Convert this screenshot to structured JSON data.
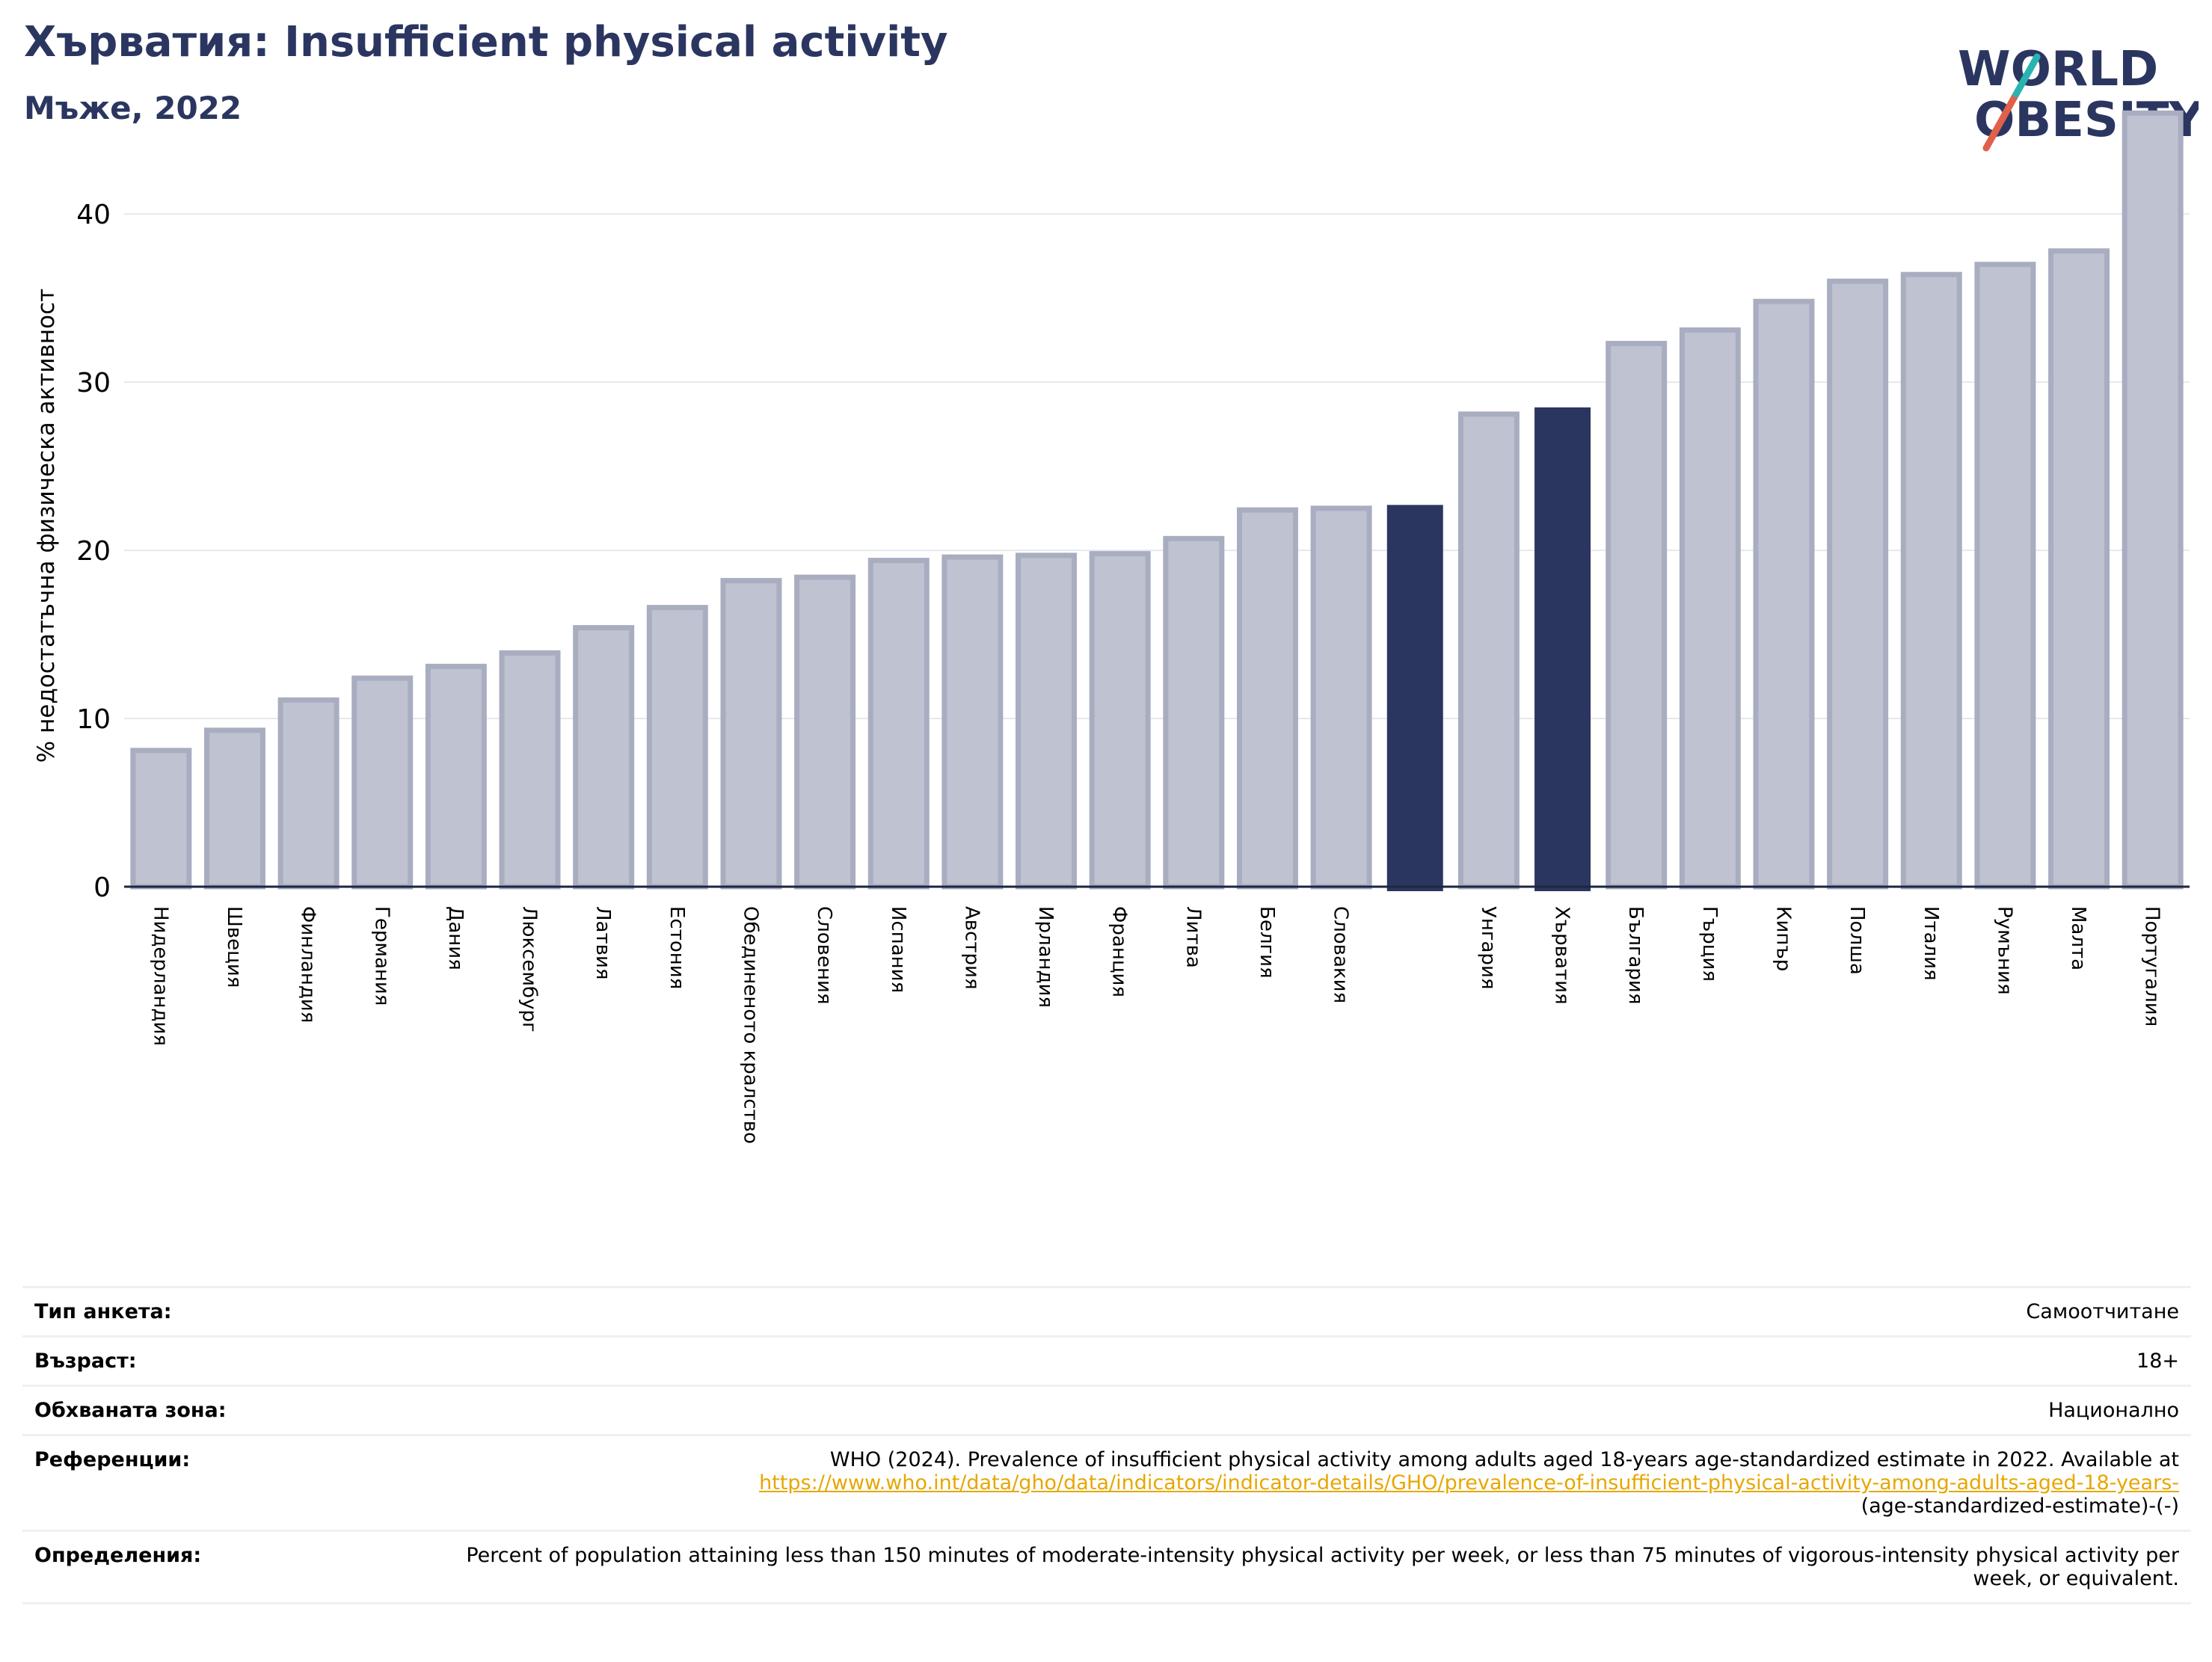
{
  "title": "Хърватия: Insufficient physical activity",
  "subtitle": "Мъже, 2022",
  "logo": {
    "line1": "WORLD",
    "line2": "OBESITY",
    "colors": {
      "text": "#2b3660",
      "slash_red": "#e0604a",
      "slash_teal": "#2ab3b1"
    }
  },
  "colors": {
    "bar": "#bfc2d0",
    "bar_edge": "#a9adc0",
    "highlight": "#2b3660",
    "grid": "#e6e8ef",
    "axis": "#1f2540"
  },
  "chart_data": {
    "type": "bar",
    "ylabel": "% недостатъчна физическа активност",
    "ylim": [
      0,
      46.5
    ],
    "yticks": [
      0,
      10,
      20,
      30,
      40
    ],
    "grid": true,
    "categories": [
      "Нидерландия",
      "Швеция",
      "Финландия",
      "Германия",
      "Дания",
      "Люксембург",
      "Латвия",
      "Естония",
      "Обединеното кралство",
      "Словения",
      "Испания",
      "Австрия",
      "Ирландия",
      "Франция",
      "Литва",
      "Белгия",
      "Словакия",
      "",
      "Унгария",
      "Хърватия",
      "България",
      "Гърция",
      "Кипър",
      "Полша",
      "Италия",
      "Румъния",
      "Малта",
      "Португалия"
    ],
    "values": [
      8.1,
      9.3,
      11.1,
      12.4,
      13.1,
      13.9,
      15.4,
      16.6,
      18.2,
      18.4,
      19.4,
      19.6,
      19.7,
      19.8,
      20.7,
      22.4,
      22.5,
      22.7,
      28.1,
      28.5,
      32.3,
      33.1,
      34.8,
      36.0,
      36.4,
      37.0,
      37.8,
      46.0
    ],
    "highlight": [
      17,
      19
    ]
  },
  "info": {
    "rows": [
      {
        "label": "Тип анкета:",
        "value": "Самоотчитане"
      },
      {
        "label": "Възраст:",
        "value": "18+"
      },
      {
        "label": "Обхваната зона:",
        "value": "Национално"
      },
      {
        "label": "Референции:",
        "value": "WHO (2024). Prevalence of insufficient physical activity among adults aged 18-years age-standardized estimate in 2022. Available at",
        "link": "https://www.who.int/data/gho/data/indicators/indicator-details/GHO/prevalence-of-insufficient-physical-activity-among-adults-aged-18-years-",
        "value_after": "(age-standardized-estimate)-(-)"
      },
      {
        "label": "Определения:",
        "value": "Percent of population attaining less than 150 minutes of moderate-intensity physical activity per week, or less than 75 minutes of vigorous-intensity physical activity per week, or equivalent."
      }
    ]
  }
}
